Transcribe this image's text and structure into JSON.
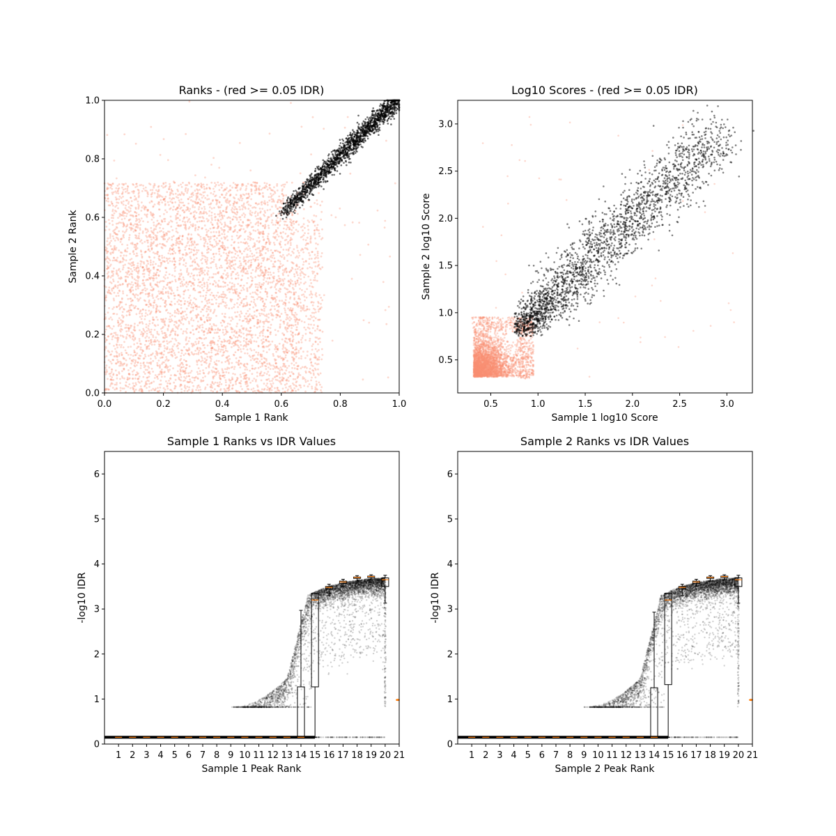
{
  "chart_data": [
    {
      "type": "scatter",
      "title": "Ranks - (red >= 0.05 IDR)",
      "xlabel": "Sample 1 Rank",
      "ylabel": "Sample 2 Rank",
      "xlim": [
        0.0,
        1.0
      ],
      "ylim": [
        0.0,
        1.0
      ],
      "xticks": [
        "0.0",
        "0.2",
        "0.4",
        "0.6",
        "0.8",
        "1.0"
      ],
      "yticks": [
        "0.0",
        "0.2",
        "0.4",
        "0.6",
        "0.8",
        "1.0"
      ],
      "series": [
        {
          "color": "#fa9072",
          "description_points": [
            [
              0.05,
              0.1
            ],
            [
              0.15,
              0.35
            ],
            [
              0.3,
              0.6
            ],
            [
              0.45,
              0.2
            ],
            [
              0.55,
              0.5
            ],
            [
              0.65,
              0.68
            ],
            [
              0.1,
              0.65
            ],
            [
              0.35,
              0.05
            ],
            [
              0.68,
              0.3
            ],
            [
              0.2,
              0.2
            ]
          ]
        },
        {
          "color": "#000000",
          "description_points": [
            [
              0.6,
              0.61
            ],
            [
              0.7,
              0.72
            ],
            [
              0.8,
              0.8
            ],
            [
              0.9,
              0.9
            ],
            [
              1.0,
              1.0
            ]
          ]
        }
      ],
      "grid": false
    },
    {
      "type": "scatter",
      "title": "Log10 Scores - (red >= 0.05 IDR)",
      "xlabel": "Sample 1 log10 Score",
      "ylabel": "Sample 2 log10 Score",
      "xlim": [
        0.15,
        3.27
      ],
      "ylim": [
        0.15,
        3.25
      ],
      "xticks": [
        "0.5",
        "1.0",
        "1.5",
        "2.0",
        "2.5",
        "3.0"
      ],
      "yticks": [
        "0.5",
        "1.0",
        "1.5",
        "2.0",
        "2.5",
        "3.0"
      ],
      "series": [
        {
          "color": "#fa9072",
          "description_points": [
            [
              0.3,
              0.3
            ],
            [
              0.9,
              0.9
            ],
            [
              0.6,
              0.6
            ],
            [
              0.4,
              0.8
            ],
            [
              0.8,
              0.4
            ],
            [
              2.9,
              2.95
            ]
          ]
        },
        {
          "color": "#000000",
          "description_points": [
            [
              0.78,
              0.78
            ],
            [
              1.0,
              0.95
            ],
            [
              1.5,
              1.5
            ],
            [
              2.0,
              2.0
            ],
            [
              2.5,
              2.5
            ],
            [
              2.9,
              2.9
            ]
          ]
        }
      ],
      "grid": false
    },
    {
      "type": "box+scatter",
      "title": "Sample 1 Ranks vs IDR Values",
      "xlabel": "Sample 1 Peak Rank",
      "ylabel": "-log10 IDR",
      "xlim": [
        0.0,
        21.0
      ],
      "ylim": [
        0,
        6.5
      ],
      "xticks": [
        "1",
        "2",
        "3",
        "4",
        "5",
        "6",
        "7",
        "8",
        "9",
        "10",
        "11",
        "12",
        "13",
        "14",
        "15",
        "16",
        "17",
        "18",
        "19",
        "20",
        "21"
      ],
      "yticks": [
        "0",
        "1",
        "2",
        "3",
        "4",
        "5",
        "6"
      ],
      "boxes": [
        {
          "pos": 14,
          "whislo": 0.15,
          "q1": 0.15,
          "med": 0.15,
          "q3": 1.27,
          "whishi": 2.97
        },
        {
          "pos": 15,
          "whislo": 0.15,
          "q1": 1.27,
          "med": 3.2,
          "q3": 3.35,
          "whishi": 3.35
        },
        {
          "pos": 16,
          "whislo": 3.3,
          "q1": 3.44,
          "med": 3.48,
          "q3": 3.5,
          "whishi": 3.55
        },
        {
          "pos": 17,
          "whislo": 3.5,
          "q1": 3.57,
          "med": 3.6,
          "q3": 3.62,
          "whishi": 3.66
        },
        {
          "pos": 18,
          "whislo": 3.62,
          "q1": 3.68,
          "med": 3.7,
          "q3": 3.71,
          "whishi": 3.74
        },
        {
          "pos": 19,
          "whislo": 3.64,
          "q1": 3.7,
          "med": 3.72,
          "q3": 3.73,
          "whishi": 3.76
        },
        {
          "pos": 20,
          "whislo": 3.13,
          "q1": 3.5,
          "med": 3.65,
          "q3": 3.69,
          "whishi": 3.75
        }
      ],
      "base_value": 0.15,
      "outlier_value": 0.98,
      "grid": false
    },
    {
      "type": "box+scatter",
      "title": "Sample 2 Ranks vs IDR Values",
      "xlabel": "Sample 2 Peak Rank",
      "ylabel": "-log10 IDR",
      "xlim": [
        0.0,
        21.0
      ],
      "ylim": [
        0,
        6.5
      ],
      "xticks": [
        "1",
        "2",
        "3",
        "4",
        "5",
        "6",
        "7",
        "8",
        "9",
        "10",
        "11",
        "12",
        "13",
        "14",
        "15",
        "16",
        "17",
        "18",
        "19",
        "20",
        "21"
      ],
      "yticks": [
        "0",
        "1",
        "2",
        "3",
        "4",
        "5",
        "6"
      ],
      "boxes": [
        {
          "pos": 14,
          "whislo": 0.15,
          "q1": 0.15,
          "med": 0.15,
          "q3": 1.25,
          "whishi": 2.93
        },
        {
          "pos": 15,
          "whislo": 0.15,
          "q1": 1.32,
          "med": 3.2,
          "q3": 3.35,
          "whishi": 3.35
        },
        {
          "pos": 16,
          "whislo": 3.3,
          "q1": 3.44,
          "med": 3.48,
          "q3": 3.5,
          "whishi": 3.55
        },
        {
          "pos": 17,
          "whislo": 3.5,
          "q1": 3.57,
          "med": 3.6,
          "q3": 3.62,
          "whishi": 3.66
        },
        {
          "pos": 18,
          "whislo": 3.62,
          "q1": 3.68,
          "med": 3.7,
          "q3": 3.71,
          "whishi": 3.74
        },
        {
          "pos": 19,
          "whislo": 3.64,
          "q1": 3.7,
          "med": 3.72,
          "q3": 3.73,
          "whishi": 3.76
        },
        {
          "pos": 20,
          "whislo": 3.13,
          "q1": 3.5,
          "med": 3.65,
          "q3": 3.69,
          "whishi": 3.75
        }
      ],
      "base_value": 0.15,
      "outlier_value": 0.98,
      "grid": false
    }
  ]
}
